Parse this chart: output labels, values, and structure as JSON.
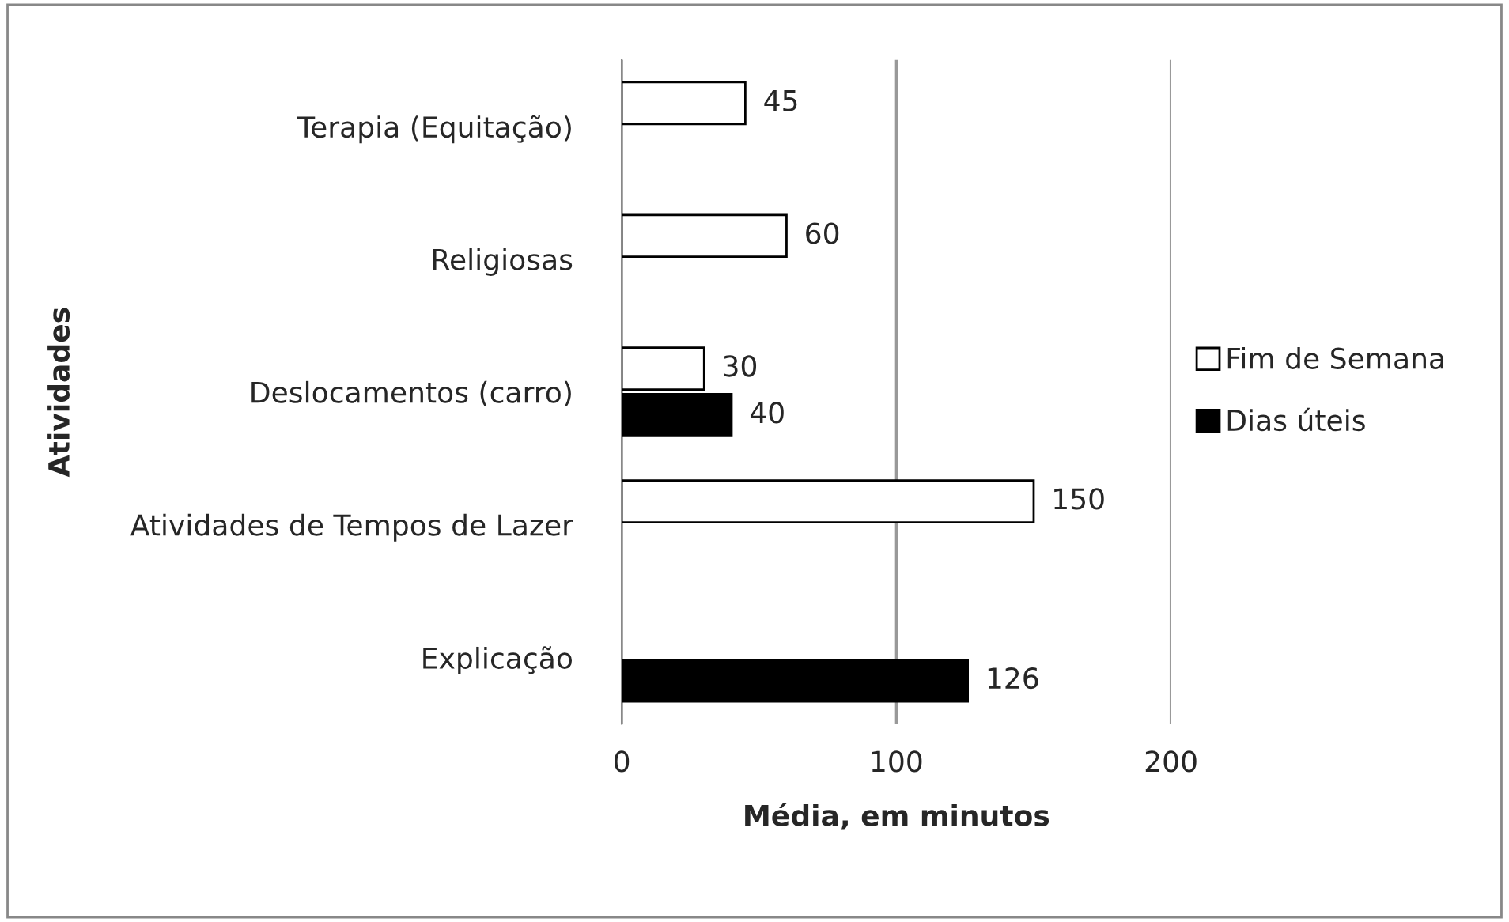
{
  "chart_data": {
    "type": "bar",
    "orientation": "horizontal",
    "categories": [
      "Terapia (Equitação)",
      "Religiosas",
      "Deslocamentos (carro)",
      "Atividades de Tempos de Lazer",
      "Explicação"
    ],
    "series": [
      {
        "name": "Fim de Semana",
        "color": "#ffffff",
        "values": [
          45,
          60,
          30,
          150,
          null
        ]
      },
      {
        "name": "Dias úteis",
        "color": "#000000",
        "values": [
          null,
          null,
          40,
          null,
          126
        ]
      }
    ],
    "xlabel": "Média, em minutos",
    "ylabel": "Atividades",
    "xlim": [
      0,
      200
    ],
    "xticks": [
      0,
      100,
      200
    ],
    "grid": "x",
    "legend": "right",
    "data_labels": true
  }
}
